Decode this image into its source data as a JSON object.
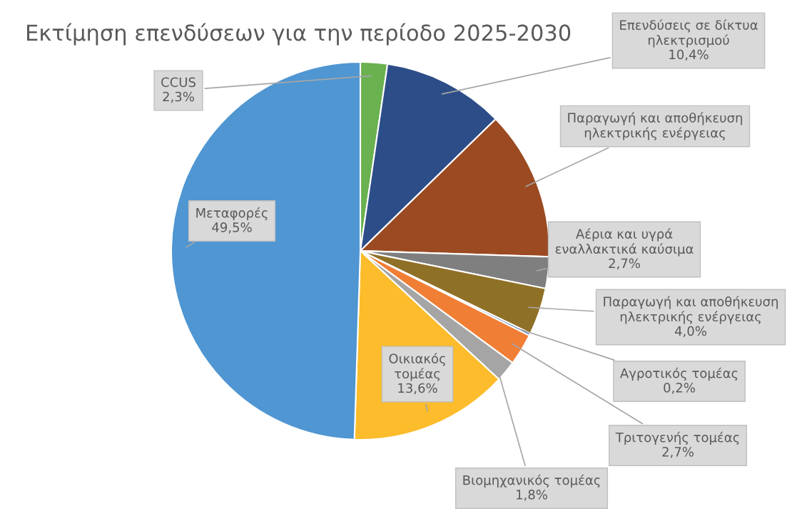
{
  "chart_data": {
    "type": "pie",
    "title": "Εκτίμηση επενδύσεων για την περίοδο 2025-2030",
    "categories": [
      "CCUS",
      "Επενδύσεις σε δίκτυα\nηλεκτρισμού",
      "Παραγωγή και αποθήκευση\nηλεκτρικής ενέργειας",
      "Αέρια και υγρά\nεναλλακτικά καύσιμα",
      "Παραγωγή και αποθήκευση\nηλεκτρικής ενέργειας",
      "Αγροτικός τομέας",
      "Τριτογενής τομέας",
      "Βιομηχανικός τομέας",
      "Οικιακός\nτομέας",
      "Μεταφορές"
    ],
    "values": [
      2.3,
      10.4,
      12.8,
      2.7,
      4.0,
      0.2,
      2.7,
      1.8,
      13.6,
      49.5
    ],
    "value_labels": [
      "2,3%",
      "10,4%",
      null,
      "2,7%",
      "4,0%",
      "0,2%",
      "2,7%",
      "1,8%",
      "13,6%",
      "49,5%"
    ],
    "colors": [
      "#6ab150",
      "#2c4d87",
      "#9b4a21",
      "#7f7f7f",
      "#8f7027",
      "#2e5fa0",
      "#f07e35",
      "#a5a5a5",
      "#fcbc2b",
      "#4f96d2"
    ]
  }
}
